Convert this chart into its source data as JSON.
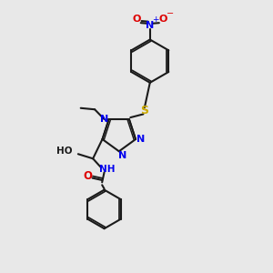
{
  "bg_color": "#e8e8e8",
  "bond_color": "#1a1a1a",
  "N_color": "#0000ee",
  "O_color": "#dd0000",
  "S_color": "#ccaa00",
  "lw": 1.5,
  "figsize": [
    3.0,
    3.0
  ],
  "dpi": 100,
  "xlim": [
    0,
    10
  ],
  "ylim": [
    0,
    10
  ]
}
